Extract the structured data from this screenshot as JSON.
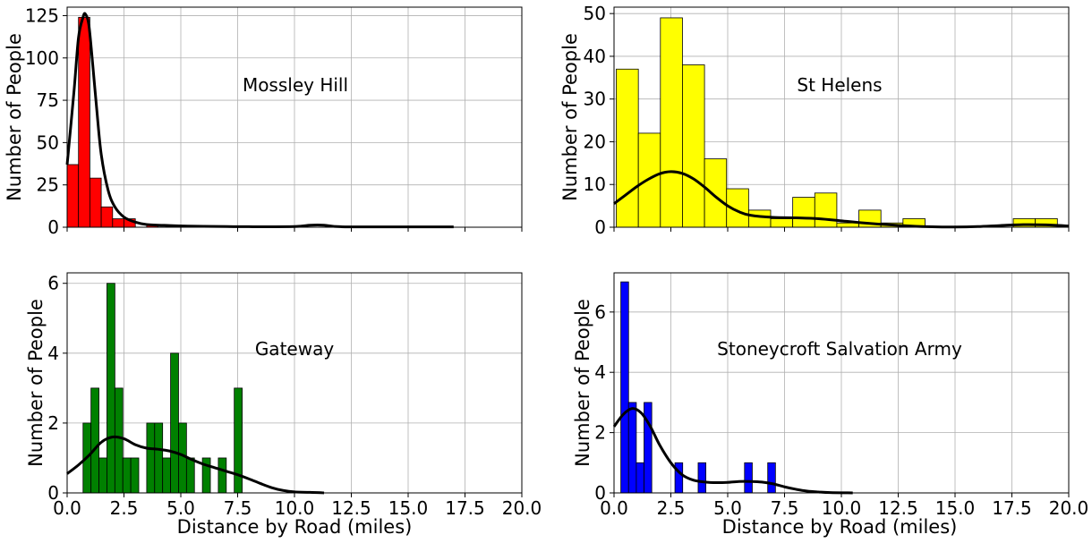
{
  "chart_data": [
    {
      "type": "bar",
      "annotation": "Mossley Hill",
      "bar_color": "#ff0000",
      "xlabel": "",
      "ylabel": "Number of People",
      "xlim": [
        0,
        20
      ],
      "ylim": [
        0,
        130
      ],
      "xticks": [
        0,
        2.5,
        5,
        7.5,
        10,
        12.5,
        15,
        17.5,
        20
      ],
      "xtick_labels_visible": false,
      "yticks": [
        0,
        25,
        50,
        75,
        100,
        125
      ],
      "ytick_labels": [
        "0",
        "25",
        "50",
        "75",
        "100",
        "125"
      ],
      "grid": true,
      "bin_width": 0.5,
      "bins": [
        {
          "x0": 0.0,
          "count": 37
        },
        {
          "x0": 0.5,
          "count": 124
        },
        {
          "x0": 1.0,
          "count": 29
        },
        {
          "x0": 1.5,
          "count": 12
        },
        {
          "x0": 2.0,
          "count": 5
        },
        {
          "x0": 2.5,
          "count": 5
        },
        {
          "x0": 3.5,
          "count": 1
        }
      ],
      "kde": [
        [
          0,
          37
        ],
        [
          0.3,
          80
        ],
        [
          0.5,
          112
        ],
        [
          0.7,
          124
        ],
        [
          0.8,
          126
        ],
        [
          0.95,
          120
        ],
        [
          1.1,
          100
        ],
        [
          1.3,
          70
        ],
        [
          1.5,
          43
        ],
        [
          1.8,
          22
        ],
        [
          2.1,
          12
        ],
        [
          2.5,
          6
        ],
        [
          3,
          3
        ],
        [
          3.5,
          1.6
        ],
        [
          4.5,
          1
        ],
        [
          6,
          0.5
        ],
        [
          8,
          0.3
        ],
        [
          10,
          0.4
        ],
        [
          10.7,
          1.2
        ],
        [
          11.3,
          1.2
        ],
        [
          12,
          0.3
        ],
        [
          14,
          0.2
        ],
        [
          17,
          0.2
        ]
      ]
    },
    {
      "type": "bar",
      "annotation": "St Helens",
      "bar_color": "#ffff00",
      "xlabel": "",
      "ylabel": "Number of People",
      "xlim": [
        0,
        20
      ],
      "ylim": [
        0,
        51.5
      ],
      "xticks": [
        0,
        2.5,
        5,
        7.5,
        10,
        12.5,
        15,
        17.5,
        20
      ],
      "xtick_labels_visible": false,
      "yticks": [
        0,
        10,
        20,
        30,
        40,
        50
      ],
      "ytick_labels": [
        "0",
        "10",
        "20",
        "30",
        "40",
        "50"
      ],
      "grid": true,
      "bin_width": 0.97,
      "bins": [
        {
          "x0": 0.1,
          "count": 37
        },
        {
          "x0": 1.07,
          "count": 22
        },
        {
          "x0": 2.04,
          "count": 49
        },
        {
          "x0": 3.01,
          "count": 38
        },
        {
          "x0": 3.98,
          "count": 16
        },
        {
          "x0": 4.95,
          "count": 9
        },
        {
          "x0": 5.92,
          "count": 4
        },
        {
          "x0": 6.89,
          "count": 2
        },
        {
          "x0": 7.86,
          "count": 7
        },
        {
          "x0": 8.83,
          "count": 8
        },
        {
          "x0": 9.8,
          "count": 1
        },
        {
          "x0": 10.77,
          "count": 4
        },
        {
          "x0": 11.74,
          "count": 1
        },
        {
          "x0": 12.71,
          "count": 2
        },
        {
          "x0": 13.68,
          "count": 0
        },
        {
          "x0": 14.65,
          "count": 0
        },
        {
          "x0": 15.62,
          "count": 0
        },
        {
          "x0": 16.59,
          "count": 0
        },
        {
          "x0": 17.56,
          "count": 2
        },
        {
          "x0": 18.53,
          "count": 2
        }
      ],
      "kde": [
        [
          0,
          5.5
        ],
        [
          0.5,
          7.5
        ],
        [
          1,
          9.5
        ],
        [
          1.5,
          11.2
        ],
        [
          2,
          12.5
        ],
        [
          2.5,
          13
        ],
        [
          3,
          12.6
        ],
        [
          3.5,
          11.3
        ],
        [
          4,
          9.3
        ],
        [
          4.5,
          7
        ],
        [
          5,
          5
        ],
        [
          5.5,
          3.6
        ],
        [
          6,
          2.8
        ],
        [
          7,
          2.3
        ],
        [
          8,
          2.2
        ],
        [
          9,
          2
        ],
        [
          10,
          1.5
        ],
        [
          11,
          1
        ],
        [
          12,
          0.6
        ],
        [
          13,
          0.3
        ],
        [
          14,
          0.1
        ],
        [
          15,
          0.05
        ],
        [
          16,
          0.15
        ],
        [
          17,
          0.4
        ],
        [
          18,
          0.6
        ],
        [
          19,
          0.55
        ],
        [
          20,
          0.3
        ]
      ]
    },
    {
      "type": "bar",
      "annotation": "Gateway",
      "bar_color": "#008000",
      "xlabel": "Distance by Road (miles)",
      "ylabel": "Number of People",
      "xlim": [
        0,
        20
      ],
      "ylim": [
        0,
        6.3
      ],
      "xticks": [
        0,
        2.5,
        5,
        7.5,
        10,
        12.5,
        15,
        17.5,
        20
      ],
      "xtick_labels": [
        "0.0",
        "2.5",
        "5.0",
        "7.5",
        "10.0",
        "12.5",
        "15.0",
        "17.5",
        "20.0"
      ],
      "xtick_labels_visible": true,
      "yticks": [
        0,
        2,
        4,
        6
      ],
      "ytick_labels": [
        "0",
        "2",
        "4",
        "6"
      ],
      "grid": true,
      "bin_width": 0.35,
      "bins": [
        {
          "x0": 0.7,
          "count": 2
        },
        {
          "x0": 1.05,
          "count": 3
        },
        {
          "x0": 1.4,
          "count": 1
        },
        {
          "x0": 1.75,
          "count": 6
        },
        {
          "x0": 2.1,
          "count": 3
        },
        {
          "x0": 2.45,
          "count": 1
        },
        {
          "x0": 2.8,
          "count": 1
        },
        {
          "x0": 3.5,
          "count": 2
        },
        {
          "x0": 3.85,
          "count": 2
        },
        {
          "x0": 4.2,
          "count": 1
        },
        {
          "x0": 4.55,
          "count": 4
        },
        {
          "x0": 4.9,
          "count": 2
        },
        {
          "x0": 5.25,
          "count": 1
        },
        {
          "x0": 5.95,
          "count": 1
        },
        {
          "x0": 6.65,
          "count": 1
        },
        {
          "x0": 7.35,
          "count": 3
        }
      ],
      "kde": [
        [
          0,
          0.55
        ],
        [
          0.5,
          0.8
        ],
        [
          1,
          1.1
        ],
        [
          1.5,
          1.45
        ],
        [
          2,
          1.6
        ],
        [
          2.5,
          1.55
        ],
        [
          3,
          1.38
        ],
        [
          3.5,
          1.28
        ],
        [
          4,
          1.25
        ],
        [
          4.5,
          1.2
        ],
        [
          5,
          1.1
        ],
        [
          5.5,
          0.95
        ],
        [
          6,
          0.82
        ],
        [
          6.5,
          0.72
        ],
        [
          7,
          0.62
        ],
        [
          7.5,
          0.52
        ],
        [
          8,
          0.4
        ],
        [
          8.5,
          0.27
        ],
        [
          9,
          0.15
        ],
        [
          9.5,
          0.07
        ],
        [
          10,
          0.03
        ],
        [
          11,
          0.01
        ],
        [
          11.3,
          0.0
        ]
      ]
    },
    {
      "type": "bar",
      "annotation": "Stoneycroft Salvation Army",
      "bar_color": "#0000ff",
      "xlabel": "Distance by Road (miles)",
      "ylabel": "Number of People",
      "xlim": [
        0,
        20
      ],
      "ylim": [
        0,
        7.3
      ],
      "xticks": [
        0,
        2.5,
        5,
        7.5,
        10,
        12.5,
        15,
        17.5,
        20
      ],
      "xtick_labels": [
        "0.0",
        "2.5",
        "5.0",
        "7.5",
        "10.0",
        "12.5",
        "15.0",
        "17.5",
        "20.0"
      ],
      "xtick_labels_visible": true,
      "yticks": [
        0,
        2,
        4,
        6
      ],
      "ytick_labels": [
        "0",
        "2",
        "4",
        "6"
      ],
      "grid": true,
      "bin_width": 0.34,
      "bins": [
        {
          "x0": 0.3,
          "count": 7
        },
        {
          "x0": 0.64,
          "count": 3
        },
        {
          "x0": 0.98,
          "count": 1
        },
        {
          "x0": 1.32,
          "count": 3
        },
        {
          "x0": 2.68,
          "count": 1
        },
        {
          "x0": 3.7,
          "count": 1
        },
        {
          "x0": 5.74,
          "count": 1
        },
        {
          "x0": 6.76,
          "count": 1
        }
      ],
      "kde": [
        [
          0,
          2.2
        ],
        [
          0.4,
          2.6
        ],
        [
          0.8,
          2.8
        ],
        [
          1.2,
          2.65
        ],
        [
          1.6,
          2.2
        ],
        [
          2,
          1.6
        ],
        [
          2.5,
          1.0
        ],
        [
          3,
          0.6
        ],
        [
          3.5,
          0.42
        ],
        [
          4,
          0.36
        ],
        [
          4.5,
          0.34
        ],
        [
          5,
          0.35
        ],
        [
          5.5,
          0.38
        ],
        [
          6,
          0.38
        ],
        [
          6.5,
          0.36
        ],
        [
          7,
          0.3
        ],
        [
          7.5,
          0.2
        ],
        [
          8,
          0.12
        ],
        [
          8.5,
          0.06
        ],
        [
          9,
          0.03
        ],
        [
          9.5,
          0.01
        ],
        [
          10.5,
          0.0
        ]
      ]
    }
  ]
}
